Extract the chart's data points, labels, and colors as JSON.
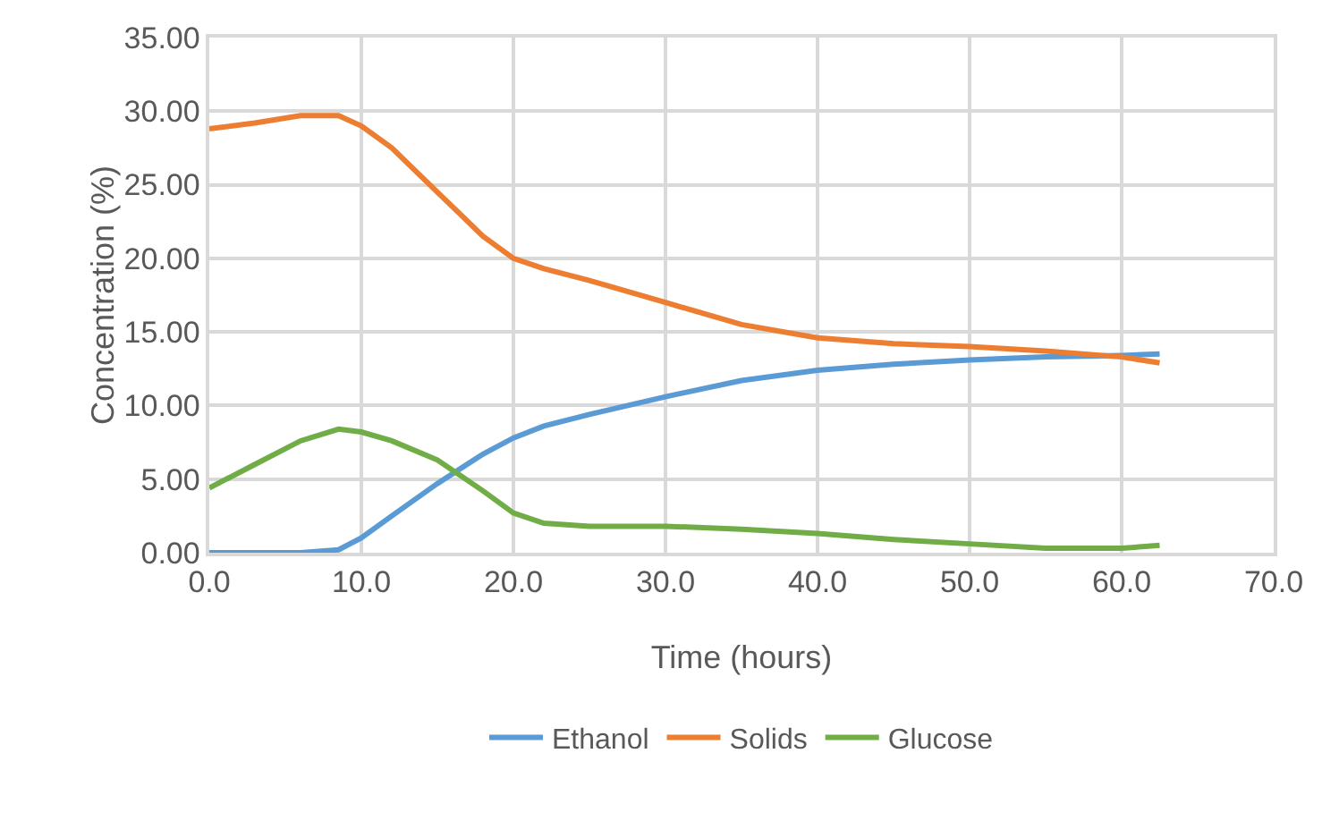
{
  "chart_data": {
    "type": "line",
    "xlabel": "Time (hours)",
    "ylabel": "Concentration (%)",
    "x": [
      0,
      3,
      6,
      8.5,
      10,
      12,
      15,
      18,
      20,
      22,
      25,
      30,
      35,
      40,
      45,
      50,
      55,
      60,
      62.5
    ],
    "series": [
      {
        "name": "Ethanol",
        "color": "#5b9bd5",
        "values": [
          0,
          0,
          0,
          0.2,
          1,
          2.5,
          4.7,
          6.7,
          7.8,
          8.6,
          9.4,
          10.6,
          11.7,
          12.4,
          12.8,
          13.1,
          13.3,
          13.4,
          13.5
        ]
      },
      {
        "name": "Solids",
        "color": "#ed7d31",
        "values": [
          28.8,
          29.2,
          29.7,
          29.7,
          29,
          27.5,
          24.5,
          21.5,
          20,
          19.3,
          18.5,
          17,
          15.5,
          14.6,
          14.2,
          14,
          13.7,
          13.3,
          12.9
        ]
      },
      {
        "name": "Glucose",
        "color": "#70ad47",
        "values": [
          4.4,
          6,
          7.6,
          8.4,
          8.2,
          7.6,
          6.3,
          4.2,
          2.7,
          2,
          1.8,
          1.8,
          1.6,
          1.3,
          0.9,
          0.6,
          0.3,
          0.3,
          0.5
        ]
      }
    ],
    "xlim": [
      0,
      70
    ],
    "ylim": [
      0,
      35
    ],
    "xticks": [
      {
        "value": 0,
        "label": "0.0"
      },
      {
        "value": 10,
        "label": "10.0"
      },
      {
        "value": 20,
        "label": "20.0"
      },
      {
        "value": 30,
        "label": "30.0"
      },
      {
        "value": 40,
        "label": "40.0"
      },
      {
        "value": 50,
        "label": "50.0"
      },
      {
        "value": 60,
        "label": "60.0"
      },
      {
        "value": 70,
        "label": "70.0"
      }
    ],
    "yticks": [
      {
        "value": 0,
        "label": "0.00"
      },
      {
        "value": 5,
        "label": "5.00"
      },
      {
        "value": 10,
        "label": "10.00"
      },
      {
        "value": 15,
        "label": "15.00"
      },
      {
        "value": 20,
        "label": "20.00"
      },
      {
        "value": 25,
        "label": "25.00"
      },
      {
        "value": 30,
        "label": "30.00"
      },
      {
        "value": 35,
        "label": "35.00"
      }
    ],
    "grid": true,
    "legend": "bottom",
    "marker": "none",
    "line_style": "solid"
  }
}
